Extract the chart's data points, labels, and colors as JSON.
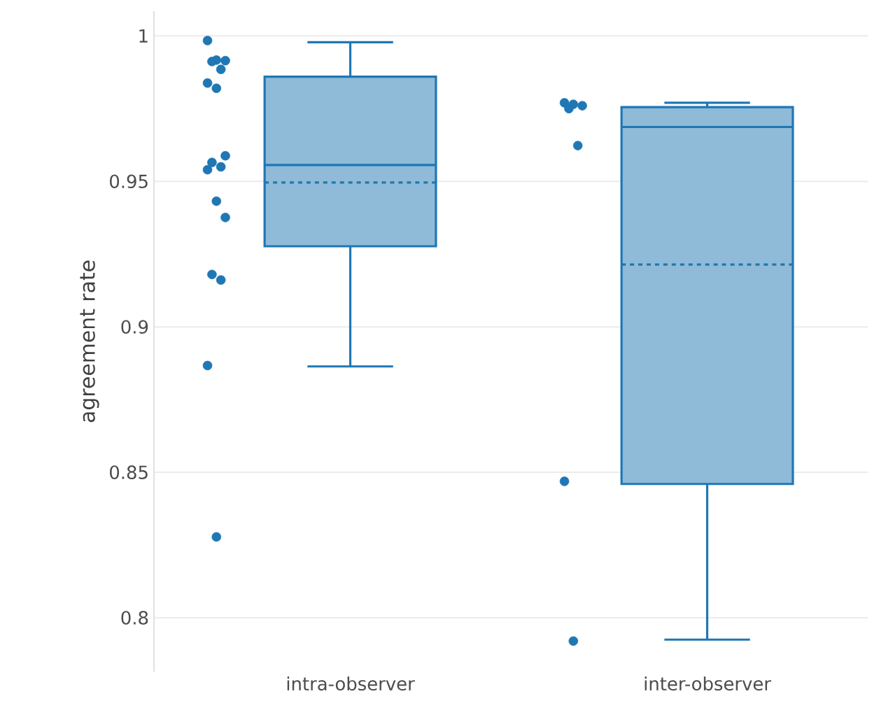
{
  "chart_data": {
    "type": "box",
    "ylabel": "agreement rate",
    "categories": [
      "intra-observer",
      "inter-observer"
    ],
    "ylim": [
      0.7815,
      1.0085
    ],
    "yticks": [
      0.8,
      0.85,
      0.9,
      0.95,
      1
    ],
    "grid": "y",
    "series": [
      {
        "color": "#1f77b4",
        "boxes": [
          {
            "low": 0.8864,
            "q1": 0.9277,
            "median": 0.9556,
            "q3": 0.986,
            "high": 0.9978,
            "mean": 0.9496
          },
          {
            "low": 0.7925,
            "q1": 0.846,
            "median": 0.9687,
            "q3": 0.9755,
            "high": 0.977,
            "mean": 0.9214
          }
        ]
      },
      {
        "type": "scatter",
        "color": "#1f77b4",
        "marker": "circle",
        "x": [
          "intra-observer",
          "intra-observer",
          "intra-observer",
          "intra-observer",
          "intra-observer",
          "intra-observer",
          "intra-observer",
          "intra-observer",
          "intra-observer",
          "intra-observer",
          "intra-observer",
          "intra-observer",
          "intra-observer",
          "intra-observer",
          "intra-observer",
          "intra-observer",
          "intra-observer"
        ],
        "values": [
          0.9984,
          0.9917,
          0.9915,
          0.9912,
          0.9885,
          0.9838,
          0.982,
          0.9588,
          0.9565,
          0.955,
          0.954,
          0.9432,
          0.9376,
          0.918,
          0.9161,
          0.8867,
          0.8278
        ]
      },
      {
        "type": "scatter",
        "color": "#1f77b4",
        "marker": "circle",
        "x": [
          "inter-observer",
          "inter-observer",
          "inter-observer",
          "inter-observer",
          "inter-observer",
          "inter-observer",
          "inter-observer"
        ],
        "values": [
          0.977,
          0.9765,
          0.976,
          0.975,
          0.9623,
          0.8469,
          0.792
        ]
      }
    ]
  }
}
